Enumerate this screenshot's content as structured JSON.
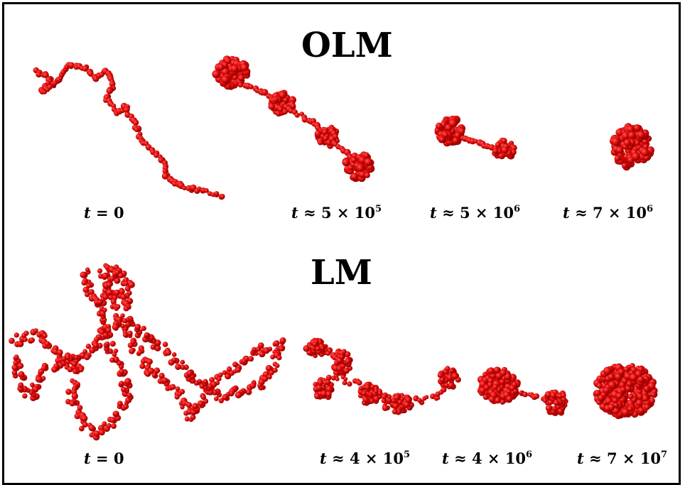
{
  "accent_color": "#e00a0a",
  "panels": [
    {
      "title": "OLM",
      "snapshots": [
        {
          "var": "t",
          "rel": "=",
          "value": "0",
          "exponent": ""
        },
        {
          "var": "t",
          "rel": "≈",
          "value": "5 × 10",
          "exponent": "5"
        },
        {
          "var": "t",
          "rel": "≈",
          "value": "5 × 10",
          "exponent": "6"
        },
        {
          "var": "t",
          "rel": "≈",
          "value": "7 × 10",
          "exponent": "6"
        }
      ]
    },
    {
      "title": "LM",
      "snapshots": [
        {
          "var": "t",
          "rel": "=",
          "value": "0",
          "exponent": ""
        },
        {
          "var": "t",
          "rel": "≈",
          "value": "4 × 10",
          "exponent": "5"
        },
        {
          "var": "t",
          "rel": "≈",
          "value": "4 × 10",
          "exponent": "6"
        },
        {
          "var": "t",
          "rel": "≈",
          "value": "7 × 10",
          "exponent": "7"
        }
      ]
    }
  ]
}
